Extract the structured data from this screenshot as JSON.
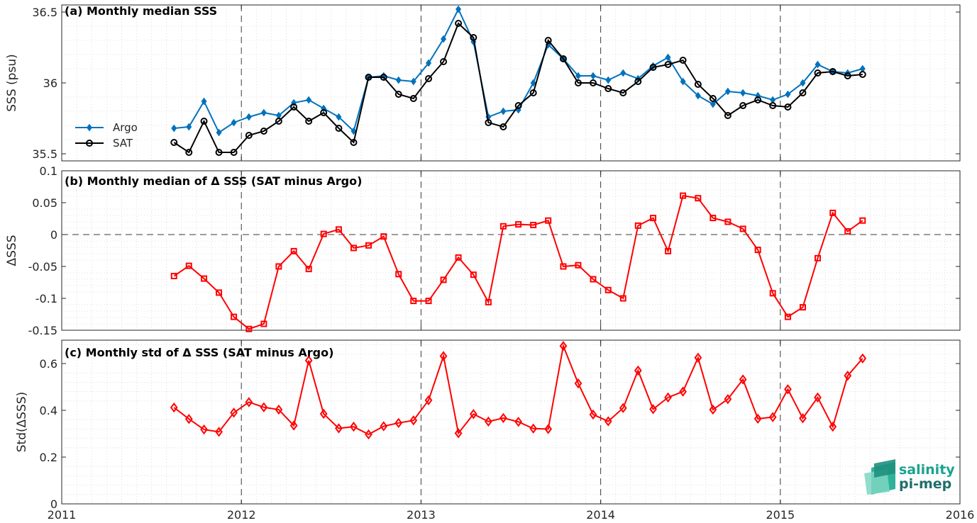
{
  "chart_data": [
    {
      "type": "line",
      "title": "(a) Monthly median SSS",
      "ylabel": "SSS (psu)",
      "xlim": [
        2011,
        2016
      ],
      "ylim": [
        35.45,
        36.55
      ],
      "yticks": [
        35.5,
        36,
        36.5
      ],
      "ytick_labels": [
        "35.5",
        "36",
        "36.5"
      ],
      "grid": "minor dotted",
      "legend": "left",
      "series": [
        {
          "name": "Argo",
          "color": "#0072BD",
          "marker": "diamond",
          "x": [
            2011.625,
            2011.708,
            2011.792,
            2011.875,
            2011.958,
            2012.042,
            2012.125,
            2012.208,
            2012.292,
            2012.375,
            2012.458,
            2012.542,
            2012.625,
            2012.708,
            2012.792,
            2012.875,
            2012.958,
            2013.042,
            2013.125,
            2013.208,
            2013.292,
            2013.375,
            2013.458,
            2013.542,
            2013.625,
            2013.708,
            2013.792,
            2013.875,
            2013.958,
            2014.042,
            2014.125,
            2014.208,
            2014.292,
            2014.375,
            2014.458,
            2014.542,
            2014.625,
            2014.708,
            2014.792,
            2014.875,
            2014.958,
            2015.042,
            2015.125,
            2015.208,
            2015.292,
            2015.375,
            2015.458
          ],
          "values": [
            35.68,
            35.69,
            35.87,
            35.65,
            35.72,
            35.76,
            35.79,
            35.77,
            35.86,
            35.88,
            35.82,
            35.76,
            35.66,
            36.04,
            36.05,
            36.02,
            36.01,
            36.14,
            36.31,
            36.52,
            36.29,
            35.76,
            35.8,
            35.81,
            36.0,
            36.27,
            36.17,
            36.05,
            36.05,
            36.02,
            36.07,
            36.03,
            36.12,
            36.18,
            36.01,
            35.91,
            35.85,
            35.94,
            35.93,
            35.91,
            35.88,
            35.92,
            36.0,
            36.13,
            36.08,
            36.07,
            36.1
          ]
        },
        {
          "name": "SAT",
          "color": "#000000",
          "marker": "circle",
          "x": [
            2011.625,
            2011.708,
            2011.792,
            2011.875,
            2011.958,
            2012.042,
            2012.125,
            2012.208,
            2012.292,
            2012.375,
            2012.458,
            2012.542,
            2012.625,
            2012.708,
            2012.792,
            2012.875,
            2012.958,
            2013.042,
            2013.125,
            2013.208,
            2013.292,
            2013.375,
            2013.458,
            2013.542,
            2013.625,
            2013.708,
            2013.792,
            2013.875,
            2013.958,
            2014.042,
            2014.125,
            2014.208,
            2014.292,
            2014.375,
            2014.458,
            2014.542,
            2014.625,
            2014.708,
            2014.792,
            2014.875,
            2014.958,
            2015.042,
            2015.125,
            2015.208,
            2015.292,
            2015.375,
            2015.458
          ],
          "values": [
            35.58,
            35.51,
            35.73,
            35.51,
            35.51,
            35.63,
            35.66,
            35.73,
            35.83,
            35.73,
            35.79,
            35.68,
            35.58,
            36.04,
            36.04,
            35.92,
            35.89,
            36.03,
            36.15,
            36.42,
            36.32,
            35.72,
            35.69,
            35.84,
            35.93,
            36.3,
            36.17,
            36.0,
            36.0,
            35.96,
            35.93,
            36.01,
            36.11,
            36.13,
            36.16,
            35.99,
            35.89,
            35.77,
            35.84,
            35.88,
            35.84,
            35.83,
            35.93,
            36.07,
            36.08,
            36.05,
            36.06
          ]
        }
      ]
    },
    {
      "type": "line",
      "title": "(b) Monthly median of Δ SSS (SAT minus Argo)",
      "ylabel": "ΔSSS",
      "xlim": [
        2011,
        2016
      ],
      "ylim": [
        -0.15,
        0.1
      ],
      "yticks": [
        -0.15,
        -0.1,
        -0.05,
        0,
        0.05,
        0.1
      ],
      "ytick_labels": [
        "-0.15",
        "-0.1",
        "-0.05",
        "0",
        "0.05",
        "0.1"
      ],
      "grid": "minor dotted",
      "reference_line": 0,
      "series": [
        {
          "color": "#FF0000",
          "marker": "square",
          "x": [
            2011.625,
            2011.708,
            2011.792,
            2011.875,
            2011.958,
            2012.042,
            2012.125,
            2012.208,
            2012.292,
            2012.375,
            2012.458,
            2012.542,
            2012.625,
            2012.708,
            2012.792,
            2012.875,
            2012.958,
            2013.042,
            2013.125,
            2013.208,
            2013.292,
            2013.375,
            2013.458,
            2013.542,
            2013.625,
            2013.708,
            2013.792,
            2013.875,
            2013.958,
            2014.042,
            2014.125,
            2014.208,
            2014.292,
            2014.375,
            2014.458,
            2014.542,
            2014.625,
            2014.708,
            2014.792,
            2014.875,
            2014.958,
            2015.042,
            2015.125,
            2015.208,
            2015.292,
            2015.375,
            2015.458
          ],
          "values": [
            -0.065,
            -0.049,
            -0.069,
            -0.091,
            -0.129,
            -0.148,
            -0.14,
            -0.05,
            -0.026,
            -0.054,
            0.001,
            0.008,
            -0.021,
            -0.017,
            -0.003,
            -0.062,
            -0.104,
            -0.104,
            -0.071,
            -0.036,
            -0.063,
            -0.106,
            0.013,
            0.016,
            0.015,
            0.022,
            -0.05,
            -0.048,
            -0.07,
            -0.087,
            -0.1,
            0.014,
            0.026,
            -0.026,
            0.061,
            0.057,
            0.026,
            0.02,
            0.009,
            -0.024,
            -0.092,
            -0.129,
            -0.114,
            -0.037,
            0.034,
            0.005,
            0.022
          ]
        }
      ]
    },
    {
      "type": "line",
      "title": "(c) Monthly std of Δ SSS (SAT minus Argo)",
      "ylabel": "Std(ΔSSS)",
      "xlim": [
        2011,
        2016
      ],
      "ylim": [
        0,
        0.7
      ],
      "yticks": [
        0,
        0.2,
        0.4,
        0.6
      ],
      "ytick_labels": [
        "0",
        "0.2",
        "0.4",
        "0.6"
      ],
      "xticks": [
        2011,
        2012,
        2013,
        2014,
        2015,
        2016
      ],
      "xtick_labels": [
        "2011",
        "2012",
        "2013",
        "2014",
        "2015",
        "2016"
      ],
      "grid": "minor dotted",
      "series": [
        {
          "color": "#FF0000",
          "marker": "diamond",
          "x": [
            2011.625,
            2011.708,
            2011.792,
            2011.875,
            2011.958,
            2012.042,
            2012.125,
            2012.208,
            2012.292,
            2012.375,
            2012.458,
            2012.542,
            2012.625,
            2012.708,
            2012.792,
            2012.875,
            2012.958,
            2013.042,
            2013.125,
            2013.208,
            2013.292,
            2013.375,
            2013.458,
            2013.542,
            2013.625,
            2013.708,
            2013.792,
            2013.875,
            2013.958,
            2014.042,
            2014.125,
            2014.208,
            2014.292,
            2014.375,
            2014.458,
            2014.542,
            2014.625,
            2014.708,
            2014.792,
            2014.875,
            2014.958,
            2015.042,
            2015.125,
            2015.208,
            2015.292,
            2015.375,
            2015.458
          ],
          "values": [
            0.412,
            0.363,
            0.318,
            0.308,
            0.39,
            0.435,
            0.413,
            0.403,
            0.335,
            0.613,
            0.385,
            0.323,
            0.33,
            0.297,
            0.332,
            0.346,
            0.357,
            0.443,
            0.632,
            0.302,
            0.384,
            0.352,
            0.367,
            0.351,
            0.322,
            0.32,
            0.675,
            0.515,
            0.382,
            0.353,
            0.41,
            0.57,
            0.405,
            0.455,
            0.48,
            0.625,
            0.403,
            0.448,
            0.532,
            0.364,
            0.371,
            0.49,
            0.366,
            0.455,
            0.33,
            0.548,
            0.622
          ]
        }
      ]
    }
  ],
  "logo": {
    "line1": "salinity",
    "line2": "pi-mep"
  }
}
